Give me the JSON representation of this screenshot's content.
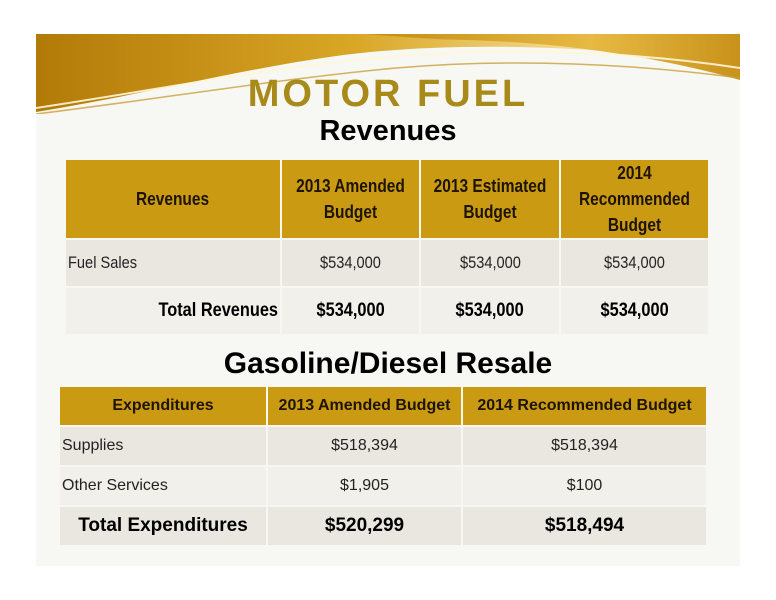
{
  "title": "MOTOR FUEL",
  "revenues_section": {
    "heading": "Revenues",
    "headers": [
      "Revenues",
      "2013 Amended Budget",
      "2013 Estimated Budget",
      "2014 Recommended Budget"
    ],
    "rows": [
      {
        "label": "Fuel Sales",
        "values": [
          "$534,000",
          "$534,000",
          "$534,000"
        ]
      }
    ],
    "total": {
      "label": "Total Revenues",
      "values": [
        "$534,000",
        "$534,000",
        "$534,000"
      ]
    }
  },
  "expenditures_section": {
    "heading": "Gasoline/Diesel Resale",
    "headers": [
      "Expenditures",
      "2013 Amended Budget",
      "2014 Recommended Budget"
    ],
    "rows": [
      {
        "label": "Supplies",
        "values": [
          "$518,394",
          "$518,394"
        ]
      },
      {
        "label": "Other Services",
        "values": [
          "$1,905",
          "$100"
        ]
      }
    ],
    "total": {
      "label": "Total Expenditures",
      "values": [
        "$520,299",
        "$518,494"
      ]
    }
  },
  "colors": {
    "header_gold": "#c99a12",
    "title_gold": "#a78a1a"
  }
}
